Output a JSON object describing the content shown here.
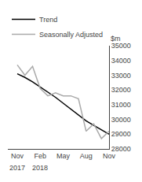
{
  "chart_data": {
    "type": "line",
    "title": "",
    "ylabel": "$m",
    "categories": [
      "Nov",
      null,
      null,
      "Feb",
      null,
      null,
      "May",
      null,
      null,
      "Aug",
      null,
      null,
      "Nov"
    ],
    "series": [
      {
        "name": "Trend",
        "color": "#000000",
        "values": [
          33100,
          32850,
          32550,
          32200,
          31850,
          31500,
          31100,
          30700,
          30300,
          29900,
          29600,
          29300,
          29000
        ]
      },
      {
        "name": "Seasonally Adjusted",
        "color": "#aaaaaa",
        "values": [
          33700,
          33000,
          33600,
          32100,
          31600,
          31800,
          31600,
          31600,
          31400,
          29200,
          29700,
          28700,
          29200
        ]
      }
    ],
    "annotations": [
      {
        "text": "2017",
        "x": 0
      },
      {
        "text": "2018",
        "x": 3
      }
    ],
    "ylim": [
      28000,
      35000
    ],
    "yticks": [
      28000,
      29000,
      30000,
      31000,
      32000,
      33000,
      34000,
      35000
    ],
    "grid": false,
    "legend": "upper left"
  }
}
